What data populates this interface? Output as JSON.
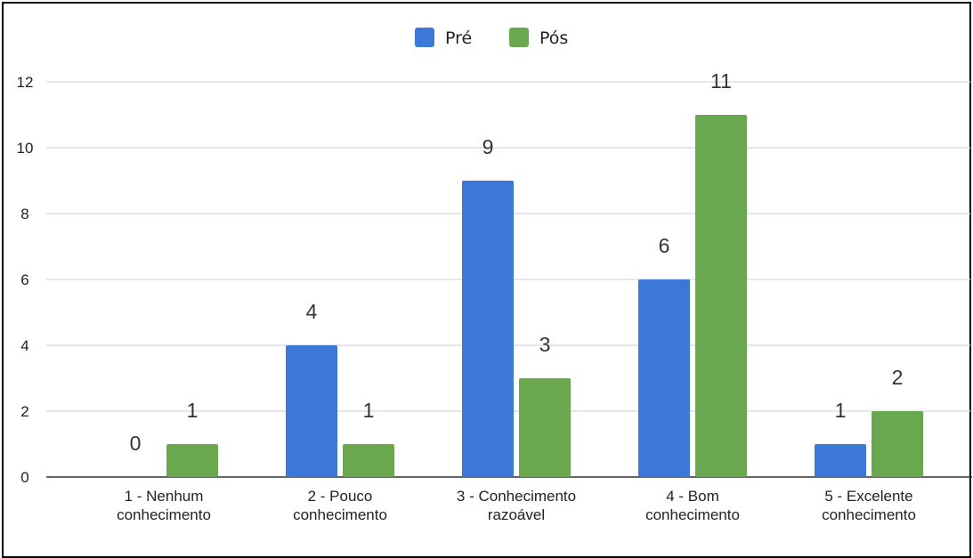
{
  "chart_data": {
    "type": "bar",
    "categories": [
      [
        "1 - Nenhum",
        "conhecimento"
      ],
      [
        "2 - Pouco",
        "conhecimento"
      ],
      [
        "3 - Conhecimento",
        "razoável"
      ],
      [
        "4 - Bom",
        "conhecimento"
      ],
      [
        "5 - Excelente",
        "conhecimento"
      ]
    ],
    "series": [
      {
        "name": "Pré",
        "color": "#3c78d8",
        "values": [
          0,
          4,
          9,
          6,
          1
        ]
      },
      {
        "name": "Pós",
        "color": "#6aa84f",
        "values": [
          1,
          1,
          3,
          11,
          2
        ]
      }
    ],
    "yticks": [
      "0",
      "2",
      "4",
      "6",
      "8",
      "10",
      "12"
    ],
    "ylim": [
      0,
      12
    ],
    "grid": true,
    "legend": "top-center"
  }
}
